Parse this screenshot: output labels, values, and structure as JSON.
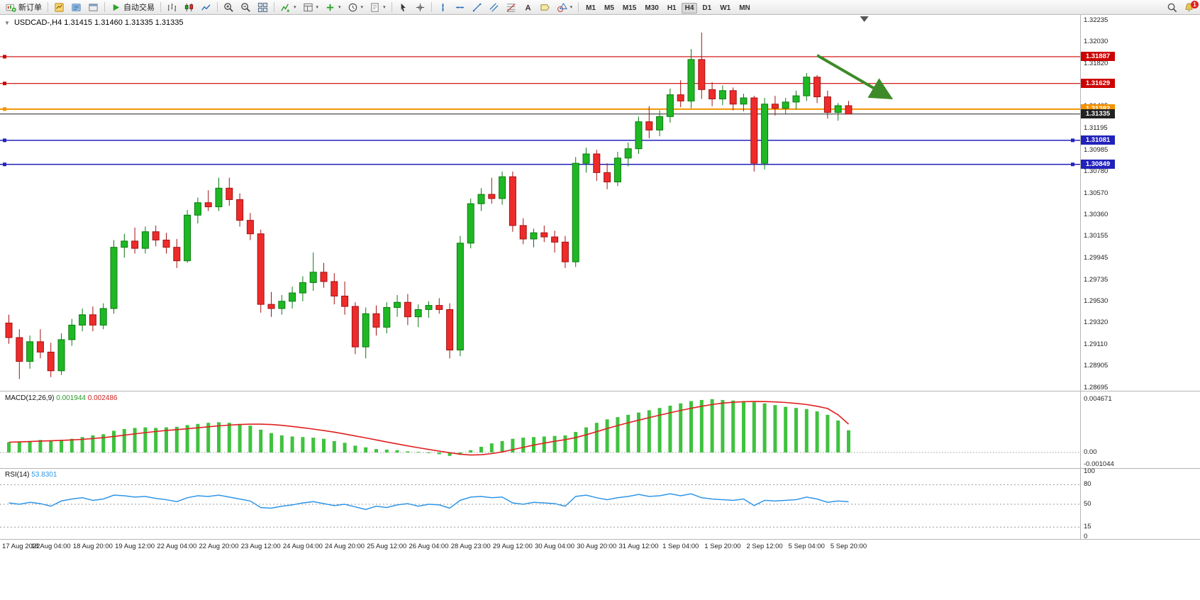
{
  "toolbar": {
    "new_order_label": "新订单",
    "autotrading_label": "自动交易",
    "timeframes": [
      "M1",
      "M5",
      "M15",
      "M30",
      "H1",
      "H4",
      "D1",
      "W1",
      "MN"
    ],
    "active_timeframe": "H4",
    "notification_badge": "1"
  },
  "chart_data": {
    "type": "candlestick",
    "symbol_period": "USDCAD-,H4",
    "ohlc_line": "1.31415 1.31460 1.31335 1.31335",
    "price_range": [
      1.28674,
      1.32283
    ],
    "y_axis_labels": [
      "1.32235",
      "1.32030",
      "1.31820",
      "1.31615",
      "1.31405",
      "1.31195",
      "1.30985",
      "1.30780",
      "1.30570",
      "1.30360",
      "1.30155",
      "1.29945",
      "1.29735",
      "1.29530",
      "1.29320",
      "1.29110",
      "1.28905",
      "1.28695"
    ],
    "x_axis_labels": [
      {
        "t": "17 Aug 2022",
        "i": 0
      },
      {
        "t": "18 Aug 04:00",
        "i": 4
      },
      {
        "t": "18 Aug 20:00",
        "i": 8
      },
      {
        "t": "19 Aug 12:00",
        "i": 12
      },
      {
        "t": "22 Aug 04:00",
        "i": 16
      },
      {
        "t": "22 Aug 20:00",
        "i": 20
      },
      {
        "t": "23 Aug 12:00",
        "i": 24
      },
      {
        "t": "24 Aug 04:00",
        "i": 28
      },
      {
        "t": "24 Aug 20:00",
        "i": 32
      },
      {
        "t": "25 Aug 12:00",
        "i": 36
      },
      {
        "t": "26 Aug 04:00",
        "i": 40
      },
      {
        "t": "28 Aug 23:00",
        "i": 44
      },
      {
        "t": "29 Aug 12:00",
        "i": 48
      },
      {
        "t": "30 Aug 04:00",
        "i": 52
      },
      {
        "t": "30 Aug 20:00",
        "i": 56
      },
      {
        "t": "31 Aug 12:00",
        "i": 60
      },
      {
        "t": "1 Sep 04:00",
        "i": 64
      },
      {
        "t": "1 Sep 20:00",
        "i": 68
      },
      {
        "t": "2 Sep 12:00",
        "i": 72
      },
      {
        "t": "5 Sep 04:00",
        "i": 76
      },
      {
        "t": "5 Sep 20:00",
        "i": 80
      }
    ],
    "hlines": [
      {
        "price": 1.31887,
        "label": "1.31887",
        "color": "#cc0000",
        "thickness": 1.2,
        "kind": "resistance"
      },
      {
        "price": 1.31629,
        "label": "1.31629",
        "color": "#cc0000",
        "thickness": 1.2,
        "kind": "resistance"
      },
      {
        "price": 1.31382,
        "label": "1.31382",
        "color": "#f59300",
        "thickness": 2,
        "kind": "pivot"
      },
      {
        "price": 1.31335,
        "label": "1.31335",
        "color": "#222222",
        "thickness": 1,
        "kind": "current-price",
        "current": true
      },
      {
        "price": 1.31081,
        "label": "1.31081",
        "color": "#2222bb",
        "thickness": 1.5,
        "kind": "support"
      },
      {
        "price": 1.30849,
        "label": "1.30849",
        "color": "#2222bb",
        "thickness": 1.5,
        "kind": "support"
      }
    ],
    "arrow": {
      "from_index": 77,
      "from_price": 1.319,
      "to_index": 84,
      "to_price": 1.3149,
      "color": "#3d8b28"
    },
    "shift_marker_index": 81.5,
    "candles": [
      [
        1.2932,
        1.294,
        1.2912,
        1.2918
      ],
      [
        1.2918,
        1.2926,
        1.2878,
        1.2895
      ],
      [
        1.2895,
        1.292,
        1.2888,
        1.2914
      ],
      [
        1.2914,
        1.2926,
        1.2898,
        1.2904
      ],
      [
        1.2904,
        1.2913,
        1.288,
        1.2886
      ],
      [
        1.2886,
        1.2922,
        1.2882,
        1.2916
      ],
      [
        1.2916,
        1.2936,
        1.291,
        1.293
      ],
      [
        1.293,
        1.2946,
        1.2924,
        1.294
      ],
      [
        1.294,
        1.2948,
        1.2924,
        1.293
      ],
      [
        1.293,
        1.2951,
        1.2926,
        1.2946
      ],
      [
        1.2946,
        1.3012,
        1.2941,
        1.3005
      ],
      [
        1.3005,
        1.3018,
        1.2995,
        1.3011
      ],
      [
        1.3011,
        1.3024,
        1.2999,
        1.3004
      ],
      [
        1.3004,
        1.3025,
        1.2999,
        1.302
      ],
      [
        1.302,
        1.3026,
        1.3006,
        1.3012
      ],
      [
        1.3012,
        1.3019,
        1.2999,
        1.3005
      ],
      [
        1.3005,
        1.3013,
        1.2985,
        1.2992
      ],
      [
        1.2992,
        1.3041,
        1.299,
        1.3036
      ],
      [
        1.3036,
        1.3053,
        1.3028,
        1.3048
      ],
      [
        1.3048,
        1.306,
        1.304,
        1.3044
      ],
      [
        1.3044,
        1.3072,
        1.304,
        1.3062
      ],
      [
        1.3062,
        1.3072,
        1.3045,
        1.3051
      ],
      [
        1.3051,
        1.3057,
        1.3025,
        1.3031
      ],
      [
        1.3031,
        1.3038,
        1.3012,
        1.3018
      ],
      [
        1.3018,
        1.3022,
        1.2942,
        1.295
      ],
      [
        1.295,
        1.2962,
        1.2938,
        1.2946
      ],
      [
        1.2946,
        1.2959,
        1.294,
        1.2953
      ],
      [
        1.2953,
        1.2967,
        1.2946,
        1.2961
      ],
      [
        1.2961,
        1.2977,
        1.2953,
        1.2971
      ],
      [
        1.2971,
        1.3,
        1.2963,
        1.2981
      ],
      [
        1.2981,
        1.299,
        1.2966,
        1.2972
      ],
      [
        1.2972,
        1.298,
        1.295,
        1.2958
      ],
      [
        1.2958,
        1.2972,
        1.294,
        1.2948
      ],
      [
        1.2948,
        1.2952,
        1.2902,
        1.2909
      ],
      [
        1.2909,
        1.2947,
        1.2898,
        1.2941
      ],
      [
        1.2941,
        1.2949,
        1.292,
        1.2928
      ],
      [
        1.2928,
        1.2952,
        1.2922,
        1.2947
      ],
      [
        1.2947,
        1.2959,
        1.2938,
        1.2952
      ],
      [
        1.2952,
        1.296,
        1.293,
        1.2938
      ],
      [
        1.2938,
        1.295,
        1.2928,
        1.2945
      ],
      [
        1.2945,
        1.2953,
        1.2937,
        1.2949
      ],
      [
        1.2949,
        1.2956,
        1.2941,
        1.2945
      ],
      [
        1.2945,
        1.2951,
        1.2898,
        1.2906
      ],
      [
        1.2906,
        1.3016,
        1.29,
        1.3009
      ],
      [
        1.3009,
        1.3052,
        1.3004,
        1.3047
      ],
      [
        1.3047,
        1.3062,
        1.304,
        1.3056
      ],
      [
        1.3056,
        1.3072,
        1.3047,
        1.3052
      ],
      [
        1.3052,
        1.3078,
        1.3046,
        1.3073
      ],
      [
        1.3073,
        1.3078,
        1.302,
        1.3026
      ],
      [
        1.3026,
        1.3033,
        1.3008,
        1.3013
      ],
      [
        1.3013,
        1.3023,
        1.3005,
        1.3019
      ],
      [
        1.3019,
        1.3026,
        1.301,
        1.3015
      ],
      [
        1.3015,
        1.3021,
        1.3,
        1.301
      ],
      [
        1.301,
        1.3016,
        1.2985,
        1.2991
      ],
      [
        1.2991,
        1.3092,
        1.2986,
        1.3086
      ],
      [
        1.3086,
        1.3101,
        1.3077,
        1.3095
      ],
      [
        1.3095,
        1.3099,
        1.3069,
        1.3077
      ],
      [
        1.3077,
        1.3086,
        1.3061,
        1.3068
      ],
      [
        1.3068,
        1.3097,
        1.3064,
        1.3091
      ],
      [
        1.3091,
        1.3106,
        1.3083,
        1.31
      ],
      [
        1.31,
        1.3131,
        1.3095,
        1.3126
      ],
      [
        1.3126,
        1.3141,
        1.311,
        1.3118
      ],
      [
        1.3118,
        1.3137,
        1.3112,
        1.3131
      ],
      [
        1.3131,
        1.3158,
        1.3125,
        1.3152
      ],
      [
        1.3152,
        1.3166,
        1.314,
        1.3146
      ],
      [
        1.3146,
        1.3196,
        1.3139,
        1.3186
      ],
      [
        1.3186,
        1.3212,
        1.3148,
        1.3157
      ],
      [
        1.3157,
        1.3164,
        1.3141,
        1.3148
      ],
      [
        1.3148,
        1.3161,
        1.3142,
        1.3156
      ],
      [
        1.3156,
        1.3159,
        1.3137,
        1.3143
      ],
      [
        1.3143,
        1.3153,
        1.3136,
        1.3149
      ],
      [
        1.3149,
        1.3151,
        1.3078,
        1.3086
      ],
      [
        1.3086,
        1.3149,
        1.308,
        1.3143
      ],
      [
        1.3143,
        1.3151,
        1.3132,
        1.3139
      ],
      [
        1.3139,
        1.3149,
        1.3133,
        1.3145
      ],
      [
        1.3145,
        1.3156,
        1.3138,
        1.3151
      ],
      [
        1.3151,
        1.3173,
        1.3146,
        1.3169
      ],
      [
        1.3169,
        1.3171,
        1.3144,
        1.315
      ],
      [
        1.315,
        1.3156,
        1.3129,
        1.3135
      ],
      [
        1.3135,
        1.3144,
        1.3127,
        1.31415
      ],
      [
        1.31415,
        1.3146,
        1.31335,
        1.31335
      ]
    ],
    "indicators": {
      "macd": {
        "name": "MACD(12,26,9)",
        "value1": "0.001944",
        "value2": "0.002486",
        "axis_labels": [
          "0.004671",
          "0.00",
          "-0.001044"
        ],
        "histogram": [
          0.0009,
          0.00095,
          0.001,
          0.0011,
          0.00105,
          0.0011,
          0.0012,
          0.00135,
          0.0015,
          0.0016,
          0.0019,
          0.00205,
          0.00215,
          0.0022,
          0.00215,
          0.0022,
          0.00225,
          0.0024,
          0.0025,
          0.0026,
          0.00265,
          0.0026,
          0.0025,
          0.00235,
          0.002,
          0.0017,
          0.0015,
          0.0014,
          0.00135,
          0.0013,
          0.0012,
          0.001,
          0.00085,
          0.0006,
          0.00045,
          0.0003,
          0.00025,
          0.0002,
          0.0001,
          5e-05,
          -5e-05,
          -0.00015,
          -0.0003,
          -0.0002,
          0.0002,
          0.0005,
          0.0008,
          0.001,
          0.0012,
          0.0013,
          0.00135,
          0.0014,
          0.00145,
          0.0015,
          0.0018,
          0.0022,
          0.0026,
          0.0029,
          0.0031,
          0.0033,
          0.0035,
          0.0037,
          0.0039,
          0.0041,
          0.0043,
          0.0045,
          0.0046,
          0.004671,
          0.0046,
          0.00455,
          0.0045,
          0.0044,
          0.0043,
          0.00415,
          0.004,
          0.0039,
          0.0038,
          0.0036,
          0.0033,
          0.0028,
          0.001944
        ],
        "signal": [
          0.0009,
          0.00093,
          0.00096,
          0.001,
          0.00103,
          0.00106,
          0.0011,
          0.00115,
          0.00122,
          0.0013,
          0.0014,
          0.00152,
          0.00163,
          0.00174,
          0.00184,
          0.00193,
          0.002,
          0.00208,
          0.00216,
          0.00225,
          0.00233,
          0.0024,
          0.00245,
          0.00248,
          0.00248,
          0.00245,
          0.00238,
          0.00228,
          0.00217,
          0.00205,
          0.00192,
          0.00178,
          0.00162,
          0.00145,
          0.00128,
          0.0011,
          0.00092,
          0.00075,
          0.00058,
          0.00042,
          0.00027,
          0.00012,
          -2e-05,
          -0.00015,
          -0.00022,
          -0.0002,
          -0.0001,
          5e-05,
          0.00025,
          0.00045,
          0.00065,
          0.00082,
          0.00098,
          0.00112,
          0.0013,
          0.00155,
          0.00182,
          0.0021,
          0.00236,
          0.0026,
          0.00283,
          0.00305,
          0.00327,
          0.00348,
          0.00368,
          0.00387,
          0.00405,
          0.0042,
          0.00432,
          0.0044,
          0.00445,
          0.00447,
          0.00446,
          0.00443,
          0.00438,
          0.0043,
          0.0042,
          0.00405,
          0.00385,
          0.0033,
          0.002486
        ]
      },
      "rsi": {
        "name": "RSI(14)",
        "value": "53.8301",
        "axis_labels": [
          "100",
          "80",
          "50",
          "15",
          "0"
        ],
        "levels": [
          80,
          50,
          15
        ],
        "values": [
          52,
          50,
          53,
          51,
          47,
          55,
          58,
          60,
          56,
          58,
          64,
          63,
          61,
          62,
          59,
          57,
          54,
          60,
          63,
          62,
          64,
          61,
          58,
          55,
          45,
          44,
          47,
          49,
          52,
          54,
          51,
          48,
          50,
          46,
          42,
          47,
          45,
          49,
          51,
          47,
          50,
          49,
          44,
          56,
          61,
          62,
          60,
          61,
          52,
          50,
          53,
          52,
          51,
          47,
          62,
          64,
          60,
          57,
          60,
          62,
          65,
          62,
          63,
          66,
          63,
          66,
          60,
          58,
          57,
          56,
          58,
          48,
          56,
          55,
          56,
          57,
          61,
          58,
          53,
          55,
          53.83
        ]
      }
    }
  }
}
